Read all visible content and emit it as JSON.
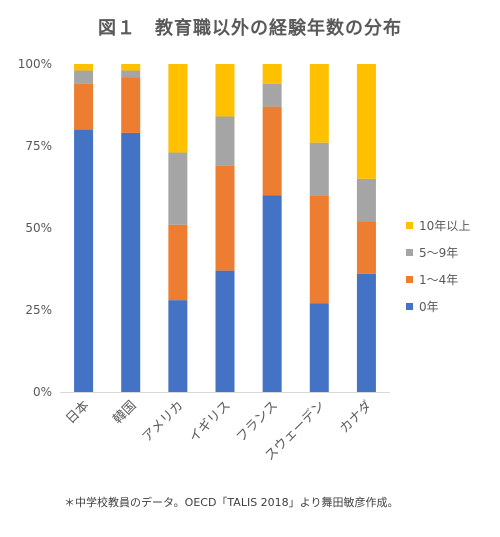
{
  "chart_data": {
    "type": "bar",
    "stacked": true,
    "normalized": true,
    "title": "図１　教育職以外の経験年数の分布",
    "categories": [
      "日本",
      "韓国",
      "アメリカ",
      "イギリス",
      "フランス",
      "スウェーデン",
      "カナダ"
    ],
    "series": [
      {
        "name": "0年",
        "color": "#4472C4",
        "values": [
          80,
          79,
          28,
          37,
          60,
          27,
          36
        ]
      },
      {
        "name": "1～4年",
        "color": "#ED7D31",
        "values": [
          14,
          17,
          23,
          32,
          27,
          33,
          16
        ]
      },
      {
        "name": "5～9年",
        "color": "#A5A5A5",
        "values": [
          4,
          2,
          22,
          15,
          7,
          16,
          13
        ]
      },
      {
        "name": "10年以上",
        "color": "#FFC000",
        "values": [
          2,
          2,
          27,
          16,
          6,
          24,
          35
        ]
      }
    ],
    "ylim": [
      0,
      100
    ],
    "yticks": [
      "0%",
      "25%",
      "50%",
      "75%",
      "100%"
    ],
    "grid": false,
    "legend_position": "right"
  },
  "footnote": "＊中学校教員のデータ。OECD「TALIS 2018」より舞田敏彦作成。"
}
